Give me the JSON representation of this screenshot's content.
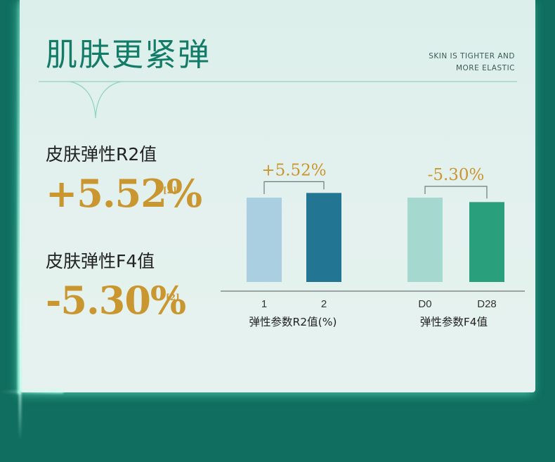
{
  "header": {
    "title": "肌肤更紧弹",
    "subtitle_line1": "SKIN IS TIGHTER AND",
    "subtitle_line2": "MORE ELASTIC"
  },
  "stats": [
    {
      "label": "皮肤弹性R2值",
      "value": "+5.52%",
      "ref": "[2]"
    },
    {
      "label": "皮肤弹性F4值",
      "value": "-5.30%",
      "ref": "[2]"
    }
  ],
  "colors": {
    "accent_green": "#137c68",
    "gold": "#c9962f",
    "bar_light_blue": "#a9cfe0",
    "bar_dark_blue": "#237594",
    "bar_mint": "#a5d9cf",
    "bar_green": "#2a9f7c"
  },
  "chart_data": [
    {
      "type": "bar",
      "categories": [
        "1",
        "2"
      ],
      "values": [
        100,
        105.52
      ],
      "xlabel": "弹性参数R2值(%)",
      "annotation": "+5.52%",
      "colors": [
        "#a9cfe0",
        "#237594"
      ]
    },
    {
      "type": "bar",
      "categories": [
        "D0",
        "D28"
      ],
      "values": [
        100,
        94.7
      ],
      "xlabel": "弹性参数F4值",
      "annotation": "-5.30%",
      "colors": [
        "#a5d9cf",
        "#2a9f7c"
      ]
    }
  ]
}
